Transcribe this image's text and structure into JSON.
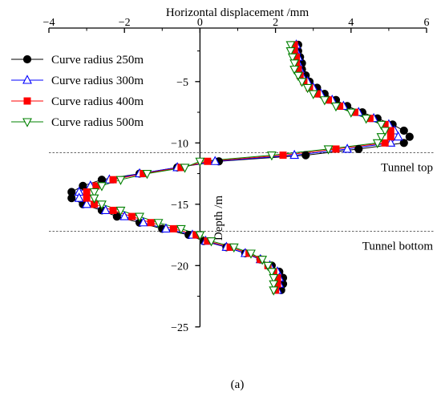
{
  "chart_data": {
    "type": "line",
    "xlabel": "Horizontal displacement /mm",
    "ylabel": "Depth /m",
    "xlim": [
      -4,
      6
    ],
    "ylim": [
      -25,
      -1
    ],
    "x_ticks": [
      -4,
      -2,
      0,
      2,
      4,
      6
    ],
    "x_tick_labels": [
      "−4",
      "−2",
      "0",
      "2",
      "4",
      "6"
    ],
    "y_ticks": [
      -5,
      -10,
      -15,
      -20,
      -25
    ],
    "y_tick_labels": [
      "−5",
      "−10",
      "−15",
      "−20",
      "−25"
    ],
    "x_axis_position": "top",
    "grid": false,
    "legend_position": "top-left",
    "reference_lines": [
      {
        "y": -10.8,
        "label": "Tunnel top"
      },
      {
        "y": -17.2,
        "label": "Tunnel bottom"
      }
    ],
    "caption": "(a)",
    "series": [
      {
        "name": "Curve radius 250m",
        "color": "#000000",
        "marker": "circle-filled",
        "points": [
          [
            2.6,
            -2.0
          ],
          [
            2.6,
            -2.5
          ],
          [
            2.65,
            -3.0
          ],
          [
            2.7,
            -3.5
          ],
          [
            2.7,
            -4.0
          ],
          [
            2.8,
            -4.5
          ],
          [
            2.9,
            -5.0
          ],
          [
            3.1,
            -5.5
          ],
          [
            3.3,
            -6.0
          ],
          [
            3.6,
            -6.5
          ],
          [
            3.9,
            -7.0
          ],
          [
            4.3,
            -7.5
          ],
          [
            4.7,
            -8.0
          ],
          [
            5.1,
            -8.5
          ],
          [
            5.4,
            -9.0
          ],
          [
            5.55,
            -9.5
          ],
          [
            5.4,
            -10.0
          ],
          [
            4.2,
            -10.5
          ],
          [
            2.8,
            -11.0
          ],
          [
            0.5,
            -11.5
          ],
          [
            -0.6,
            -12.0
          ],
          [
            -1.6,
            -12.5
          ],
          [
            -2.6,
            -13.0
          ],
          [
            -3.1,
            -13.5
          ],
          [
            -3.4,
            -14.0
          ],
          [
            -3.4,
            -14.5
          ],
          [
            -3.1,
            -15.0
          ],
          [
            -2.6,
            -15.5
          ],
          [
            -2.2,
            -16.0
          ],
          [
            -1.6,
            -16.5
          ],
          [
            -1.0,
            -17.0
          ],
          [
            -0.3,
            -17.5
          ],
          [
            0.1,
            -18.0
          ],
          [
            0.7,
            -18.5
          ],
          [
            1.2,
            -19.0
          ],
          [
            1.6,
            -19.5
          ],
          [
            1.9,
            -20.0
          ],
          [
            2.1,
            -20.5
          ],
          [
            2.2,
            -21.0
          ],
          [
            2.2,
            -21.5
          ],
          [
            2.15,
            -22.0
          ]
        ]
      },
      {
        "name": "Curve radius 300m",
        "color": "#0000ff",
        "marker": "triangle-up-open",
        "points": [
          [
            2.55,
            -2.0
          ],
          [
            2.55,
            -2.5
          ],
          [
            2.6,
            -3.0
          ],
          [
            2.6,
            -3.5
          ],
          [
            2.65,
            -4.0
          ],
          [
            2.7,
            -4.5
          ],
          [
            2.85,
            -5.0
          ],
          [
            3.0,
            -5.5
          ],
          [
            3.2,
            -6.0
          ],
          [
            3.5,
            -6.5
          ],
          [
            3.8,
            -7.0
          ],
          [
            4.2,
            -7.5
          ],
          [
            4.6,
            -8.0
          ],
          [
            5.0,
            -8.5
          ],
          [
            5.15,
            -9.0
          ],
          [
            5.25,
            -9.5
          ],
          [
            5.05,
            -10.0
          ],
          [
            3.9,
            -10.5
          ],
          [
            2.5,
            -11.0
          ],
          [
            0.4,
            -11.5
          ],
          [
            -0.6,
            -12.0
          ],
          [
            -1.6,
            -12.5
          ],
          [
            -2.4,
            -13.0
          ],
          [
            -2.9,
            -13.5
          ],
          [
            -3.2,
            -14.0
          ],
          [
            -3.2,
            -14.5
          ],
          [
            -3.0,
            -15.0
          ],
          [
            -2.5,
            -15.5
          ],
          [
            -2.0,
            -16.0
          ],
          [
            -1.5,
            -16.5
          ],
          [
            -0.9,
            -17.0
          ],
          [
            -0.2,
            -17.5
          ],
          [
            0.15,
            -18.0
          ],
          [
            0.7,
            -18.5
          ],
          [
            1.2,
            -19.0
          ],
          [
            1.6,
            -19.5
          ],
          [
            1.85,
            -20.0
          ],
          [
            2.05,
            -20.5
          ],
          [
            2.1,
            -21.0
          ],
          [
            2.1,
            -21.5
          ],
          [
            2.05,
            -22.0
          ]
        ]
      },
      {
        "name": "Curve radius 400m",
        "color": "#ff0000",
        "marker": "square-filled",
        "points": [
          [
            2.5,
            -2.0
          ],
          [
            2.5,
            -2.5
          ],
          [
            2.55,
            -3.0
          ],
          [
            2.55,
            -3.5
          ],
          [
            2.6,
            -4.0
          ],
          [
            2.65,
            -4.5
          ],
          [
            2.75,
            -5.0
          ],
          [
            2.9,
            -5.5
          ],
          [
            3.1,
            -6.0
          ],
          [
            3.4,
            -6.5
          ],
          [
            3.7,
            -7.0
          ],
          [
            4.1,
            -7.5
          ],
          [
            4.5,
            -8.0
          ],
          [
            4.9,
            -8.5
          ],
          [
            5.05,
            -9.0
          ],
          [
            5.05,
            -9.5
          ],
          [
            4.9,
            -10.0
          ],
          [
            3.6,
            -10.5
          ],
          [
            2.2,
            -11.0
          ],
          [
            0.2,
            -11.5
          ],
          [
            -0.5,
            -12.0
          ],
          [
            -1.5,
            -12.5
          ],
          [
            -2.3,
            -13.0
          ],
          [
            -2.75,
            -13.5
          ],
          [
            -3.0,
            -14.0
          ],
          [
            -3.0,
            -14.5
          ],
          [
            -2.8,
            -15.0
          ],
          [
            -2.3,
            -15.5
          ],
          [
            -1.8,
            -16.0
          ],
          [
            -1.3,
            -16.5
          ],
          [
            -0.7,
            -17.0
          ],
          [
            -0.1,
            -17.5
          ],
          [
            0.2,
            -18.0
          ],
          [
            0.8,
            -18.5
          ],
          [
            1.3,
            -19.0
          ],
          [
            1.6,
            -19.5
          ],
          [
            1.8,
            -20.0
          ],
          [
            1.95,
            -20.5
          ],
          [
            2.05,
            -21.0
          ],
          [
            2.05,
            -21.5
          ],
          [
            2.0,
            -22.0
          ]
        ]
      },
      {
        "name": "Curve radius 500m",
        "color": "#008000",
        "marker": "triangle-down-open",
        "points": [
          [
            2.4,
            -2.0
          ],
          [
            2.4,
            -2.5
          ],
          [
            2.45,
            -3.0
          ],
          [
            2.5,
            -3.5
          ],
          [
            2.5,
            -4.0
          ],
          [
            2.6,
            -4.5
          ],
          [
            2.7,
            -5.0
          ],
          [
            2.85,
            -5.5
          ],
          [
            3.0,
            -6.0
          ],
          [
            3.3,
            -6.5
          ],
          [
            3.6,
            -7.0
          ],
          [
            4.0,
            -7.5
          ],
          [
            4.4,
            -8.0
          ],
          [
            4.8,
            -8.5
          ],
          [
            4.9,
            -9.0
          ],
          [
            4.8,
            -9.5
          ],
          [
            4.7,
            -10.0
          ],
          [
            3.4,
            -10.5
          ],
          [
            1.9,
            -11.0
          ],
          [
            0.0,
            -11.5
          ],
          [
            -0.4,
            -12.0
          ],
          [
            -1.4,
            -12.5
          ],
          [
            -2.1,
            -13.0
          ],
          [
            -2.6,
            -13.5
          ],
          [
            -2.8,
            -14.0
          ],
          [
            -2.8,
            -14.5
          ],
          [
            -2.6,
            -15.0
          ],
          [
            -2.1,
            -15.5
          ],
          [
            -1.6,
            -16.0
          ],
          [
            -1.1,
            -16.5
          ],
          [
            -0.5,
            -17.0
          ],
          [
            0.0,
            -17.5
          ],
          [
            0.3,
            -18.0
          ],
          [
            0.9,
            -18.5
          ],
          [
            1.35,
            -19.0
          ],
          [
            1.65,
            -19.5
          ],
          [
            1.8,
            -20.0
          ],
          [
            1.9,
            -20.5
          ],
          [
            1.95,
            -21.0
          ],
          [
            1.95,
            -21.5
          ],
          [
            1.95,
            -22.0
          ]
        ]
      }
    ]
  }
}
